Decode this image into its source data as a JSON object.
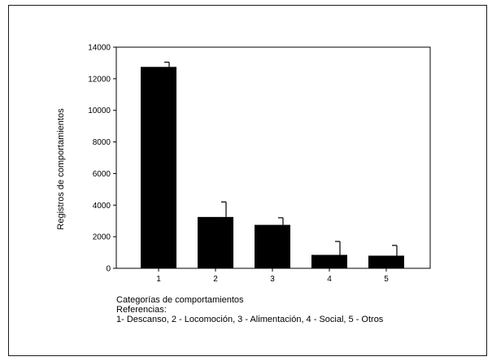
{
  "chart_data": {
    "type": "bar",
    "title": "",
    "ylabel": "Registros de comportamientos",
    "xlabel": "Categorías de comportamientos",
    "categories": [
      "1",
      "2",
      "3",
      "4",
      "5"
    ],
    "values": [
      12750,
      3250,
      2750,
      850,
      800
    ],
    "error_upper": [
      300,
      950,
      450,
      850,
      650
    ],
    "ylim": [
      0,
      14000
    ],
    "yticks": [
      0,
      2000,
      4000,
      6000,
      8000,
      10000,
      12000,
      14000
    ],
    "bar_color": "#000000",
    "grid": false
  },
  "caption": {
    "xlabel": "Categorías de comportamientos",
    "references_title": "Referencias:",
    "references_text": "1- Descanso, 2 - Locomoción, 3 - Alimentación, 4 - Social, 5 - Otros"
  }
}
